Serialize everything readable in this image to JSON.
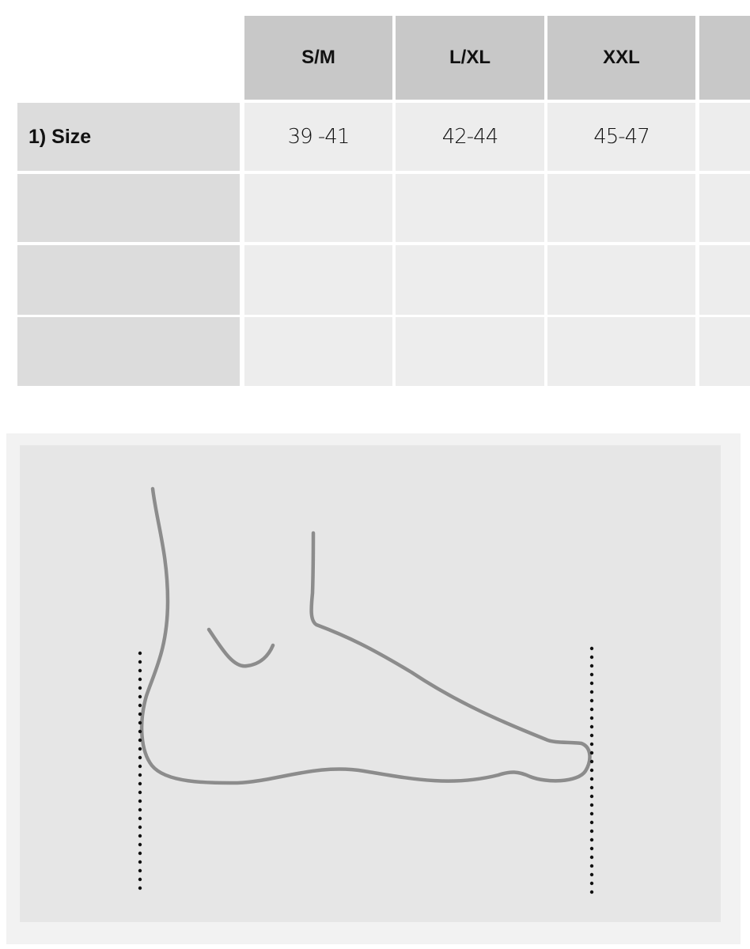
{
  "size_table": {
    "columns": [
      "S/M",
      "L/XL",
      "XXL",
      ""
    ],
    "rows": [
      {
        "label": "1)  Size",
        "values": [
          "39 -41",
          "42-44",
          "45-47",
          ""
        ]
      },
      {
        "label": "",
        "values": [
          "",
          "",
          "",
          ""
        ]
      },
      {
        "label": "",
        "values": [
          "",
          "",
          "",
          ""
        ]
      },
      {
        "label": "",
        "values": [
          "",
          "",
          "",
          ""
        ]
      }
    ]
  },
  "illustration": {
    "icon": "foot-length-diagram-icon",
    "line_color": "#8c8c8c",
    "dot_color": "#111111"
  },
  "colors": {
    "header_bg": "#c8c8c8",
    "label_bg": "#dcdcdc",
    "cell_bg": "#ededed",
    "panel_bg": "#e6e6e6"
  }
}
